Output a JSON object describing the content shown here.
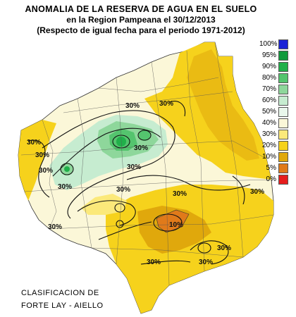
{
  "title": {
    "line1": "ANOMALIA DE LA RESERVA DE AGUA EN EL SUELO",
    "line2": "en la Region Pampeana el   30/12/2013",
    "line3": "(Respecto de igual fecha para el periodo 1971-2012)"
  },
  "legend": [
    {
      "label": "100%",
      "color": "#1a23d6"
    },
    {
      "label": "95%",
      "color": "#119a3c"
    },
    {
      "label": "90%",
      "color": "#20b04a"
    },
    {
      "label": "80%",
      "color": "#54c46e"
    },
    {
      "label": "70%",
      "color": "#8ed79b"
    },
    {
      "label": "60%",
      "color": "#c6ecd0"
    },
    {
      "label": "50%",
      "color": "#e9f7ec"
    },
    {
      "label": "40%",
      "color": "#fbf7d8"
    },
    {
      "label": "30%",
      "color": "#fbe97a"
    },
    {
      "label": "20%",
      "color": "#f6d21c"
    },
    {
      "label": "10%",
      "color": "#e0a80c"
    },
    {
      "label": "5%",
      "color": "#e07a1a"
    },
    {
      "label": "0%",
      "color": "#e61d1d"
    }
  ],
  "contour_labels": [
    "30%",
    "30%",
    "30%",
    "30%",
    "30%",
    "30%",
    "30%",
    "30%",
    "30%",
    "30%",
    "10%",
    "30%",
    "30%",
    "30%",
    "30%",
    "30%"
  ],
  "credit": {
    "line1": "CLASIFICACION DE",
    "line2": "FORTE LAY - AIELLO"
  }
}
